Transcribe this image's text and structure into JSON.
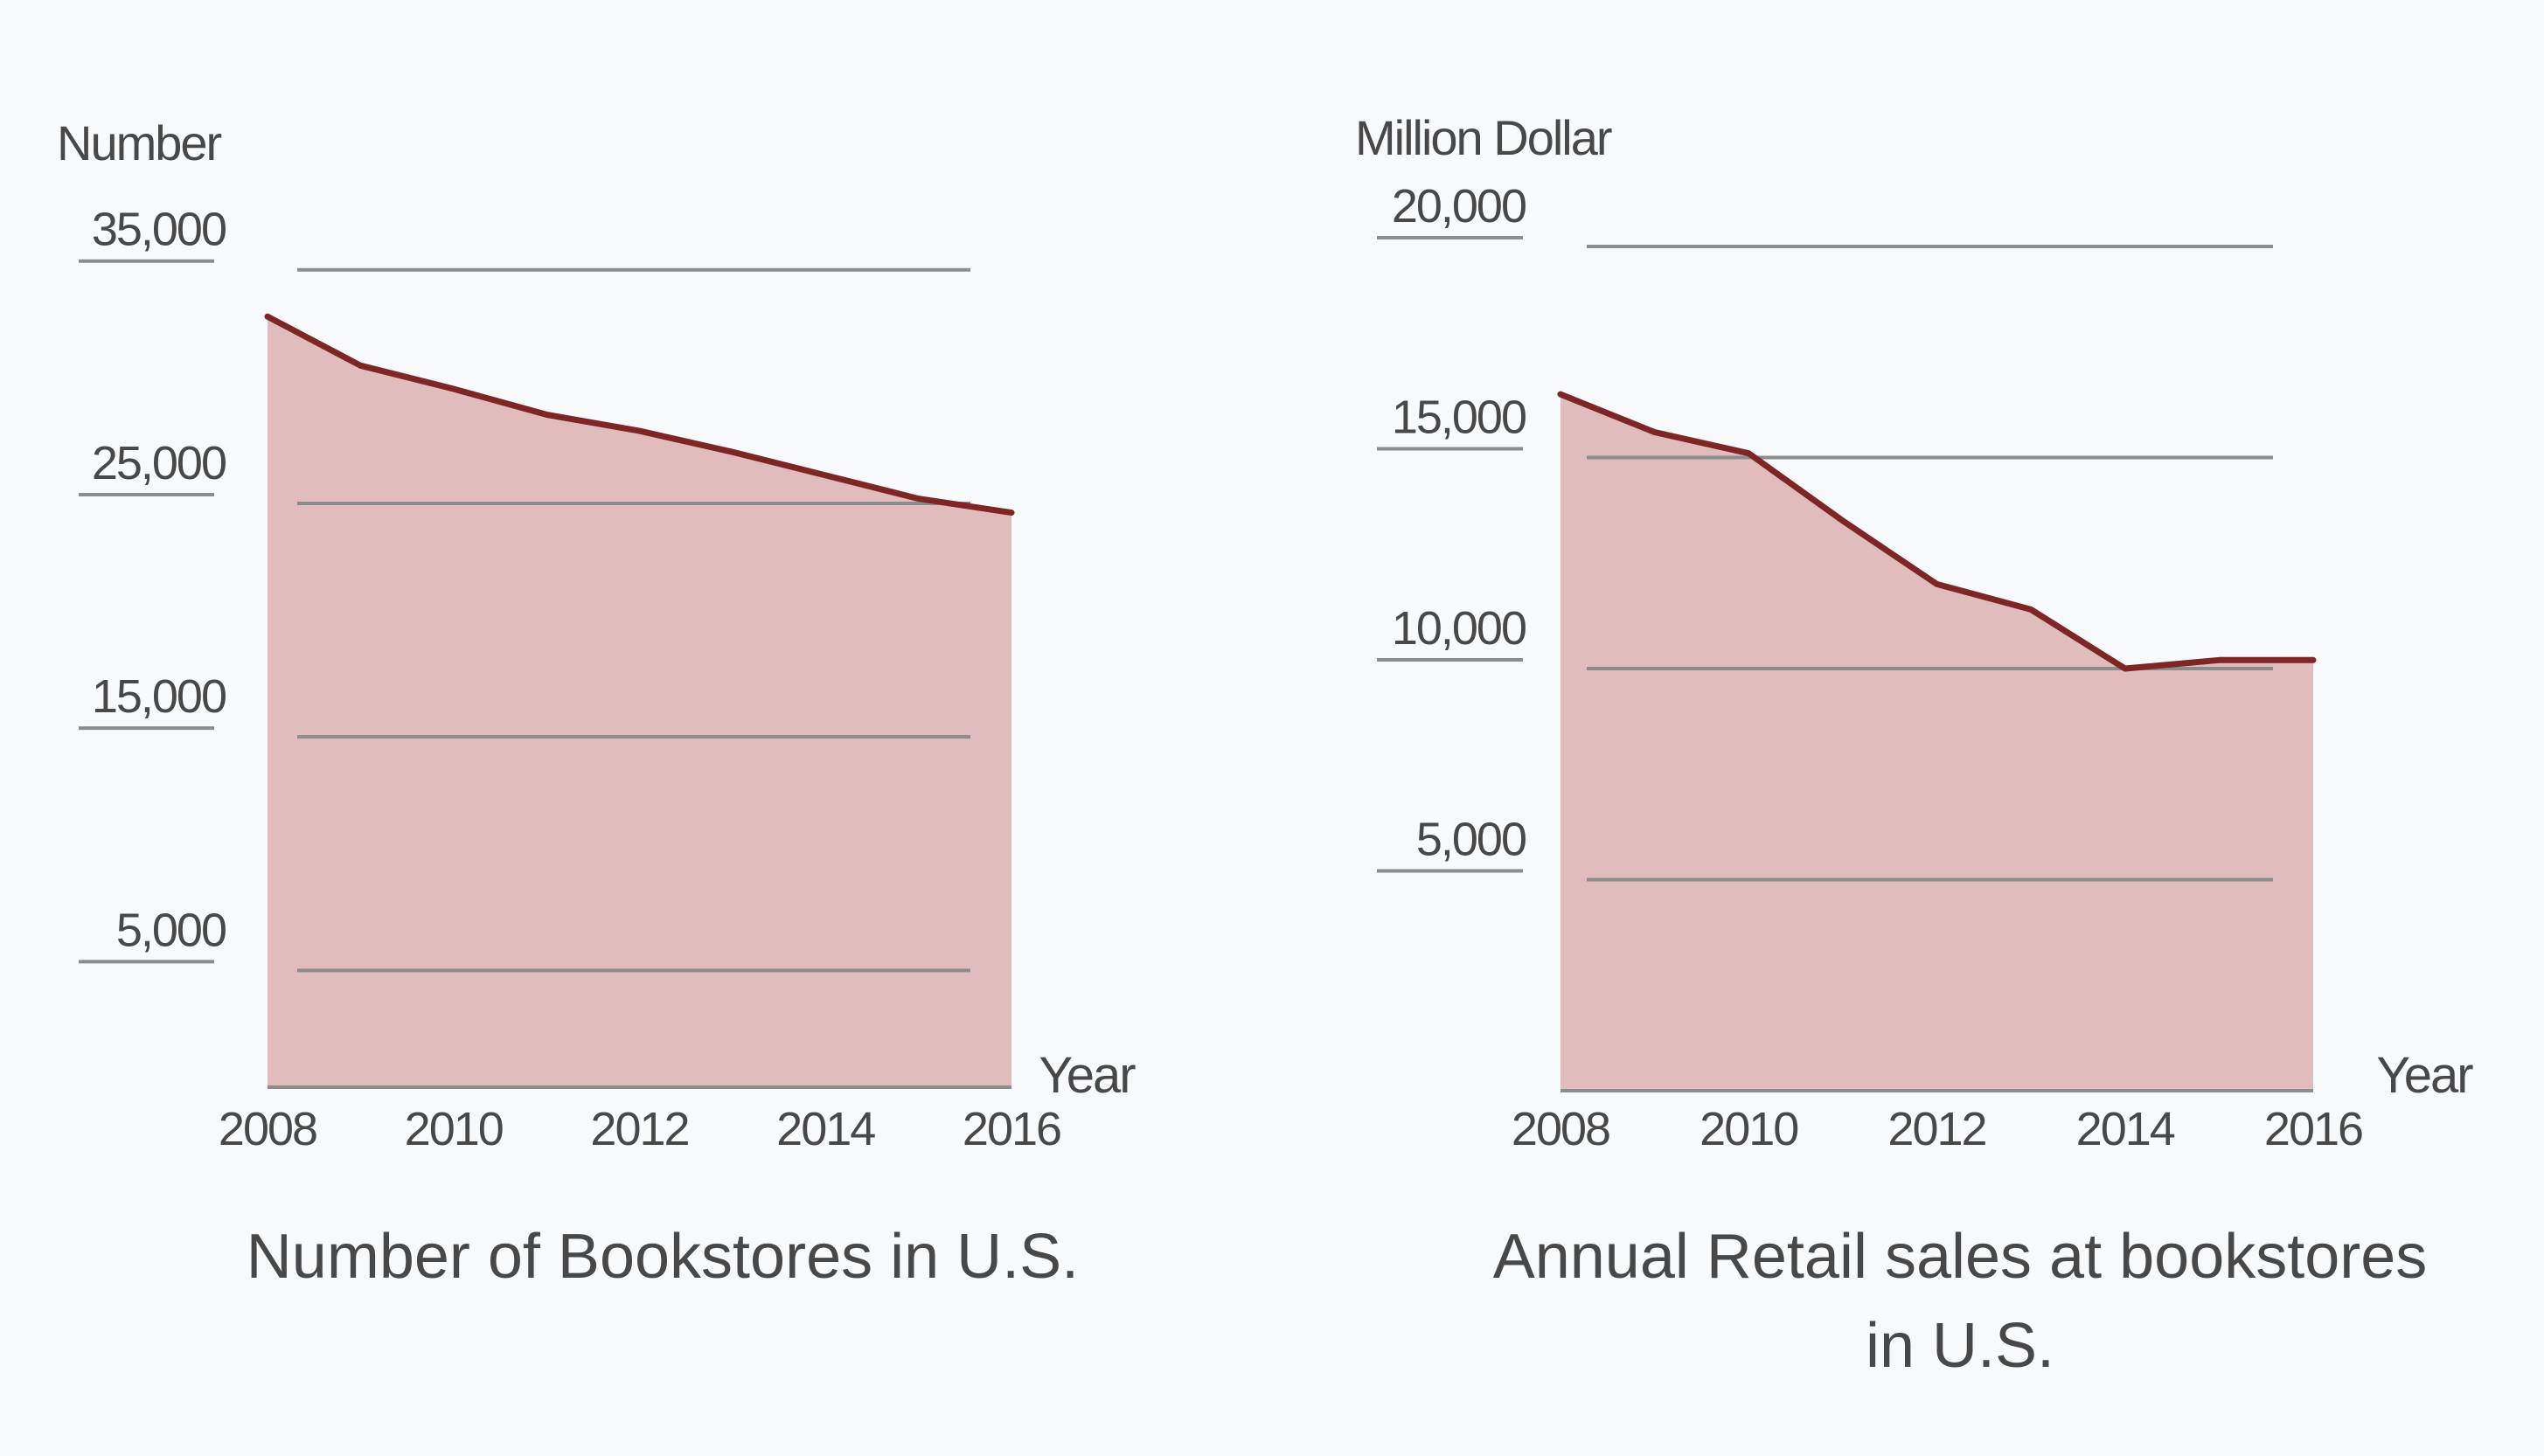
{
  "colors": {
    "background": "#f7f9fb",
    "area_fill": "#e0bcbc",
    "line": "#7e2525",
    "gridline": "#8c8c8c",
    "text": "#484848"
  },
  "chart_data": [
    {
      "type": "area",
      "title": "Number of Bookstores in U.S.",
      "ylabel": "Number",
      "xlabel": "Year",
      "x": [
        2008,
        2009,
        2010,
        2011,
        2012,
        2013,
        2014,
        2015,
        2016
      ],
      "series": [
        {
          "values": [
            33000,
            30900,
            29900,
            28800,
            28100,
            27200,
            26200,
            25200,
            24600
          ]
        }
      ],
      "x_ticks": [
        "2008",
        "2010",
        "2012",
        "2014",
        "2016"
      ],
      "y_ticks": [
        {
          "value": 5000,
          "label": "5,000"
        },
        {
          "value": 15000,
          "label": "15,000"
        },
        {
          "value": 25000,
          "label": "25,000"
        },
        {
          "value": 35000,
          "label": "35,000"
        }
      ],
      "xlim": [
        2008,
        2016
      ],
      "ylim": [
        0,
        36000
      ],
      "grid": true,
      "legend": "none"
    },
    {
      "type": "area",
      "title": "Annual Retail sales at bookstores in U.S.",
      "ylabel": "Million Dollar",
      "xlabel": "Year",
      "x": [
        2008,
        2009,
        2010,
        2011,
        2012,
        2013,
        2014,
        2015,
        2016
      ],
      "series": [
        {
          "values": [
            16500,
            15600,
            15100,
            13500,
            12000,
            11400,
            10000,
            10200,
            10200
          ]
        }
      ],
      "x_ticks": [
        "2008",
        "2010",
        "2012",
        "2014",
        "2016"
      ],
      "y_ticks": [
        {
          "value": 5000,
          "label": "5,000"
        },
        {
          "value": 10000,
          "label": "10,000"
        },
        {
          "value": 15000,
          "label": "15,000"
        },
        {
          "value": 20000,
          "label": "20,000"
        }
      ],
      "xlim": [
        2008,
        2016
      ],
      "ylim": [
        0,
        20000
      ],
      "grid": true,
      "legend": "none"
    }
  ]
}
